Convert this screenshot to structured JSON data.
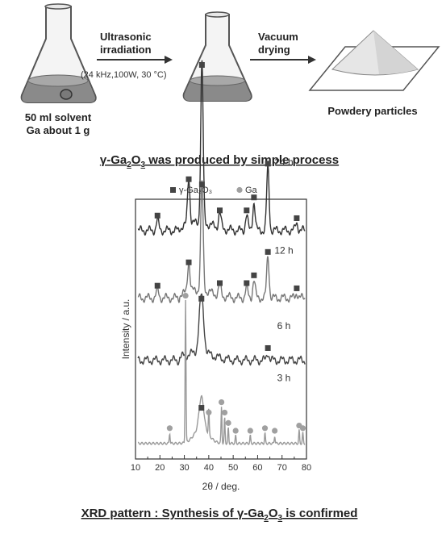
{
  "process": {
    "step1_label": "Ultrasonic",
    "step1_label_line2": "irradiation",
    "step1_conditions": "(24 kHz,100W, 30 °C)",
    "step2_label": "Vacuum",
    "step2_label_line2": "drying",
    "input_line1": "50 ml solvent",
    "input_line2": "Ga about 1 g",
    "output_label": "Powdery particles"
  },
  "caption_top": {
    "prefix": "γ-Ga",
    "sub1": "2",
    "mid": "O",
    "sub2": "3",
    "suffix": " was produced by simple process"
  },
  "caption_bottom": {
    "prefix": "XRD pattern : Synthesis of γ-Ga",
    "sub1": "2",
    "mid": "O",
    "sub2": "3",
    "suffix": " is confirmed"
  },
  "colors": {
    "flask_outline": "#555555",
    "solvent": "#8a8a8a",
    "line_24h": "#333333",
    "line_12h": "#777777",
    "line_6h": "#444444",
    "line_3h": "#999999",
    "marker_gamma": "#444444",
    "marker_ga": "#a0a0a0"
  },
  "chart_data": {
    "type": "line",
    "xlabel": "2θ / deg.",
    "ylabel": "Intensity / a.u.",
    "xlim": [
      10,
      80
    ],
    "x_ticks": [
      10,
      20,
      30,
      40,
      50,
      60,
      70,
      80
    ],
    "legend": [
      {
        "name": "γ-Ga₂O₃",
        "marker": "square"
      },
      {
        "name": "Ga",
        "marker": "circle"
      }
    ],
    "legend_position": "top-center",
    "series": [
      {
        "name": "24 h",
        "baseline": 0.88,
        "peaks": [
          [
            19,
            0.04
          ],
          [
            31.8,
            0.18
          ],
          [
            37.2,
            0.62
          ],
          [
            44.5,
            0.06
          ],
          [
            55.5,
            0.06
          ],
          [
            58.5,
            0.11
          ],
          [
            64.2,
            0.24
          ],
          [
            76,
            0.03
          ]
        ],
        "gamma_markers": [
          19,
          31.8,
          37.2,
          44.5,
          55.5,
          58.5,
          64.2,
          76
        ],
        "ga_markers": []
      },
      {
        "name": "12 h",
        "baseline": 0.62,
        "peaks": [
          [
            19,
            0.03
          ],
          [
            31.8,
            0.12
          ],
          [
            37.2,
            0.42
          ],
          [
            44.5,
            0.04
          ],
          [
            55.5,
            0.04
          ],
          [
            58.5,
            0.07
          ],
          [
            64.2,
            0.16
          ],
          [
            76,
            0.02
          ]
        ],
        "gamma_markers": [
          19,
          31.8,
          37.2,
          44.5,
          55.5,
          58.5,
          64.2,
          76
        ],
        "ga_markers": []
      },
      {
        "name": "6 h",
        "baseline": 0.38,
        "peaks": [
          [
            37,
            0.22
          ],
          [
            64.2,
            0.03
          ]
        ],
        "gamma_markers": [
          37,
          64.2
        ],
        "ga_markers": []
      },
      {
        "name": "3 h",
        "baseline": 0.06,
        "peaks": [
          [
            24,
            0.04
          ],
          [
            30.5,
            0.55
          ],
          [
            37,
            0.12
          ],
          [
            40,
            0.1
          ],
          [
            45.2,
            0.14
          ],
          [
            46.5,
            0.1
          ],
          [
            48,
            0.06
          ],
          [
            51,
            0.03
          ],
          [
            57,
            0.03
          ],
          [
            63,
            0.04
          ],
          [
            67,
            0.03
          ],
          [
            77,
            0.05
          ],
          [
            78.5,
            0.04
          ]
        ],
        "gamma_markers": [
          37
        ],
        "ga_markers": [
          24,
          30.5,
          40,
          45.2,
          46.5,
          48,
          51,
          57,
          63,
          67,
          77,
          78.5
        ]
      }
    ]
  }
}
